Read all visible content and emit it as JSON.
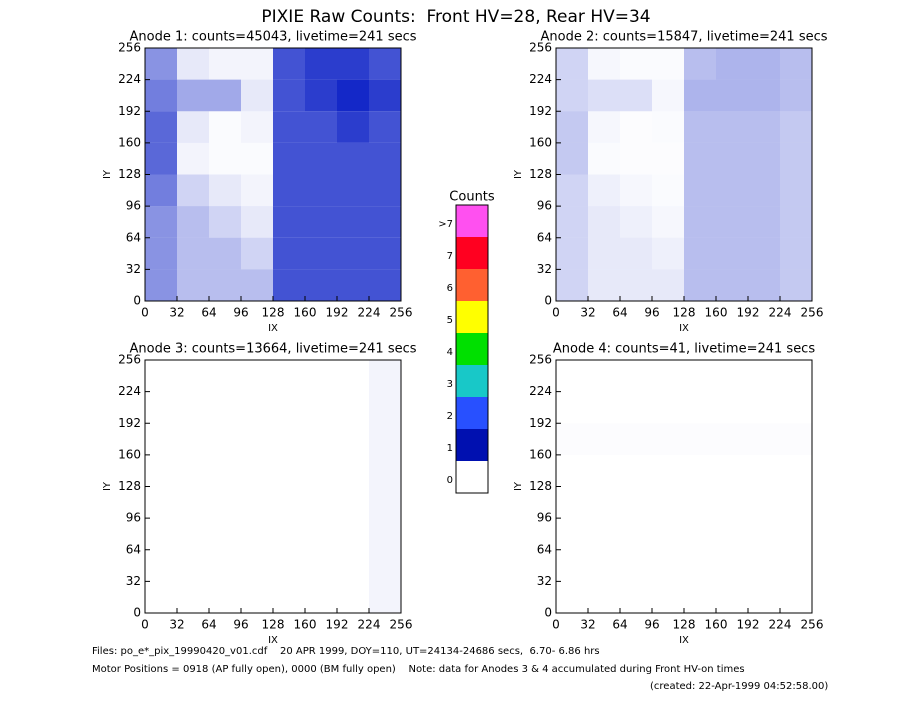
{
  "title": "PIXIE Raw Counts:  Front HV=28, Rear HV=34",
  "chart_data": [
    {
      "type": "heatmap",
      "title": "Anode 1: counts=45043, livetime=241 secs",
      "x_label": "IX",
      "y_label": "IY",
      "xlim": [
        0,
        256
      ],
      "ylim": [
        0,
        256
      ],
      "xticks": [
        0,
        32,
        64,
        96,
        128,
        160,
        192,
        224,
        256
      ],
      "yticks": [
        0,
        32,
        64,
        96,
        128,
        160,
        192,
        224,
        256
      ],
      "color": "#1428c8",
      "values": [
        [
          0.5,
          0.3,
          0.3,
          0.3,
          0.8,
          0.8,
          0.8,
          0.8
        ],
        [
          0.5,
          0.3,
          0.3,
          0.2,
          0.8,
          0.8,
          0.8,
          0.8
        ],
        [
          0.5,
          0.3,
          0.2,
          0.1,
          0.8,
          0.8,
          0.8,
          0.8
        ],
        [
          0.6,
          0.2,
          0.1,
          0.05,
          0.8,
          0.8,
          0.8,
          0.8
        ],
        [
          0.7,
          0.05,
          0.02,
          0.02,
          0.8,
          0.8,
          0.8,
          0.8
        ],
        [
          0.7,
          0.1,
          0.02,
          0.05,
          0.8,
          0.8,
          0.9,
          0.8
        ],
        [
          0.6,
          0.4,
          0.4,
          0.1,
          0.8,
          0.9,
          1.0,
          0.9
        ],
        [
          0.5,
          0.1,
          0.05,
          0.05,
          0.8,
          0.9,
          0.9,
          0.8
        ]
      ]
    },
    {
      "type": "heatmap",
      "title": "Anode 2: counts=15847, livetime=241 secs",
      "x_label": "IX",
      "y_label": "IY",
      "xlim": [
        0,
        256
      ],
      "ylim": [
        0,
        256
      ],
      "xticks": [
        0,
        32,
        64,
        96,
        128,
        160,
        192,
        224,
        256
      ],
      "yticks": [
        0,
        32,
        64,
        96,
        128,
        160,
        192,
        224,
        256
      ],
      "color": "#1428c8",
      "values": [
        [
          0.2,
          0.1,
          0.1,
          0.1,
          0.3,
          0.3,
          0.3,
          0.25
        ],
        [
          0.2,
          0.1,
          0.1,
          0.07,
          0.3,
          0.3,
          0.3,
          0.25
        ],
        [
          0.2,
          0.1,
          0.07,
          0.04,
          0.3,
          0.3,
          0.3,
          0.25
        ],
        [
          0.2,
          0.07,
          0.04,
          0.02,
          0.3,
          0.3,
          0.3,
          0.25
        ],
        [
          0.25,
          0.02,
          0.01,
          0.01,
          0.3,
          0.3,
          0.3,
          0.25
        ],
        [
          0.25,
          0.04,
          0.01,
          0.02,
          0.3,
          0.3,
          0.3,
          0.25
        ],
        [
          0.2,
          0.15,
          0.15,
          0.04,
          0.35,
          0.35,
          0.35,
          0.3
        ],
        [
          0.2,
          0.04,
          0.02,
          0.02,
          0.3,
          0.35,
          0.35,
          0.3
        ]
      ]
    },
    {
      "type": "heatmap",
      "title": "Anode 3: counts=13664, livetime=241 secs",
      "x_label": "IX",
      "y_label": "IY",
      "xlim": [
        0,
        256
      ],
      "ylim": [
        0,
        256
      ],
      "xticks": [
        0,
        32,
        64,
        96,
        128,
        160,
        192,
        224,
        256
      ],
      "yticks": [
        0,
        32,
        64,
        96,
        128,
        160,
        192,
        224,
        256
      ],
      "color": "#1428c8",
      "values": [
        [
          0,
          0,
          0,
          0,
          0,
          0,
          0,
          0.05
        ],
        [
          0,
          0,
          0,
          0,
          0,
          0,
          0,
          0.05
        ],
        [
          0,
          0,
          0,
          0,
          0,
          0,
          0,
          0.05
        ],
        [
          0,
          0,
          0,
          0,
          0,
          0,
          0,
          0.05
        ],
        [
          0,
          0,
          0,
          0,
          0,
          0,
          0,
          0.05
        ],
        [
          0,
          0,
          0,
          0,
          0,
          0,
          0,
          0.05
        ],
        [
          0,
          0,
          0,
          0,
          0,
          0,
          0,
          0.05
        ],
        [
          0,
          0,
          0,
          0,
          0,
          0,
          0,
          0.05
        ]
      ]
    },
    {
      "type": "heatmap",
      "title": "Anode 4: counts=41, livetime=241 secs",
      "x_label": "IX",
      "y_label": "IY",
      "xlim": [
        0,
        256
      ],
      "ylim": [
        0,
        256
      ],
      "xticks": [
        0,
        32,
        64,
        96,
        128,
        160,
        192,
        224,
        256
      ],
      "yticks": [
        0,
        32,
        64,
        96,
        128,
        160,
        192,
        224,
        256
      ],
      "color": "#1428c8",
      "values": [
        [
          0,
          0,
          0,
          0,
          0,
          0,
          0,
          0
        ],
        [
          0,
          0,
          0,
          0,
          0,
          0,
          0,
          0
        ],
        [
          0,
          0,
          0,
          0,
          0,
          0,
          0,
          0
        ],
        [
          0,
          0,
          0,
          0,
          0,
          0,
          0,
          0
        ],
        [
          0,
          0,
          0,
          0,
          0,
          0,
          0,
          0
        ],
        [
          0.01,
          0.01,
          0.01,
          0.01,
          0.01,
          0.01,
          0.01,
          0.01
        ],
        [
          0,
          0,
          0,
          0,
          0,
          0,
          0,
          0
        ],
        [
          0,
          0,
          0,
          0,
          0,
          0,
          0,
          0
        ]
      ]
    }
  ],
  "colorbar": {
    "title": "Counts",
    "labels": [
      ">7",
      "7",
      "6",
      "5",
      "4",
      "3",
      "2",
      "1",
      "0"
    ],
    "colors": [
      "#ff50f0",
      "#ff0020",
      "#ff6030",
      "#ffff00",
      "#00e000",
      "#18c8c8",
      "#2850ff",
      "#0010b0",
      "#ffffff"
    ]
  },
  "notes": [
    "Files: po_e*_pix_19990420_v01.cdf    20 APR 1999, DOY=110, UT=24134-24686 secs,  6.70- 6.86 hrs",
    "Motor Positions = 0918 (AP fully open), 0000 (BM fully open)    Note: data for Anodes 3 & 4 accumulated during Front HV-on times",
    "(created: 22-Apr-1999 04:52:58.00)"
  ]
}
